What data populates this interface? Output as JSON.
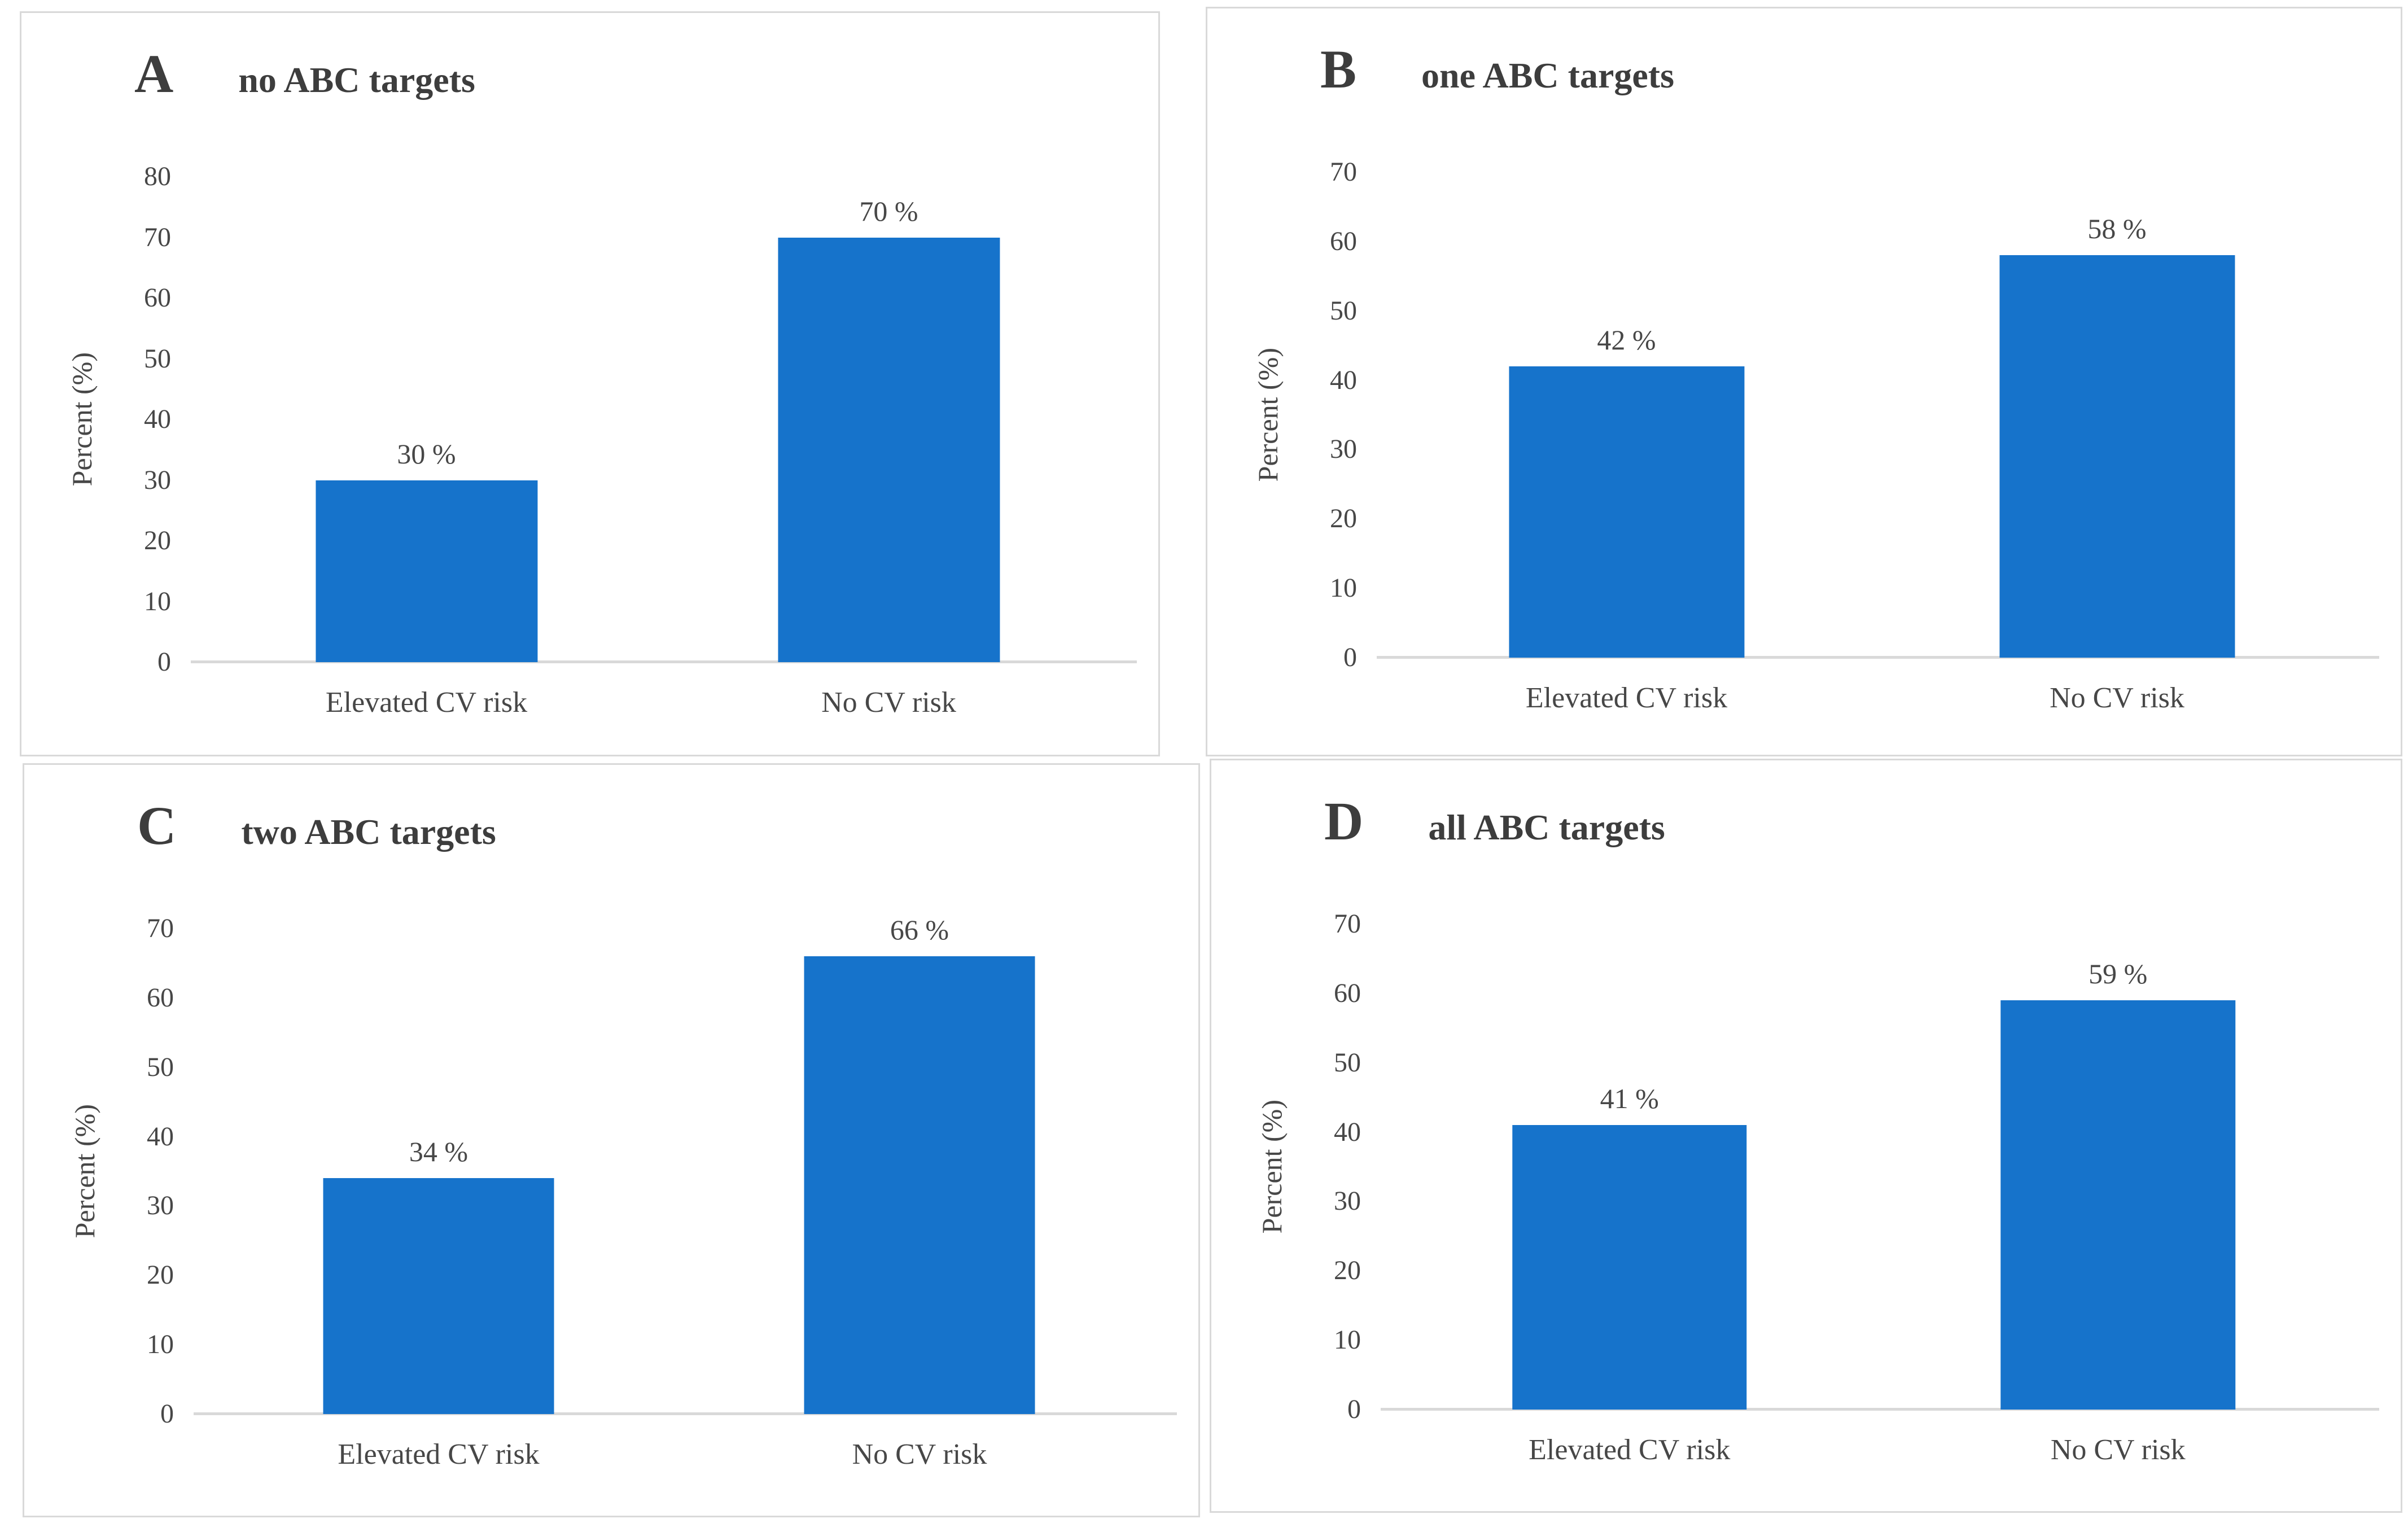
{
  "styles": {
    "bar_color": "#1673CB",
    "axis_color": "#D9D9D9",
    "border_color": "#D9D9D9",
    "text_color": "#474747",
    "title_color": "#3D3D3D"
  },
  "chart_data": [
    {
      "type": "bar",
      "panel_letter": "A",
      "title": "no ABC targets",
      "ylabel": "Percent (%)",
      "ylim": [
        0,
        80
      ],
      "ytick_step": 10,
      "grid": false,
      "legend": false,
      "categories": [
        "Elevated CV risk",
        "No CV risk"
      ],
      "values": [
        30,
        70
      ],
      "value_labels": [
        "30 %",
        "70 %"
      ]
    },
    {
      "type": "bar",
      "panel_letter": "B",
      "title": "one ABC targets",
      "ylabel": "Percent (%)",
      "ylim": [
        0,
        70
      ],
      "ytick_step": 10,
      "grid": false,
      "legend": false,
      "categories": [
        "Elevated CV risk",
        "No CV risk"
      ],
      "values": [
        42,
        58
      ],
      "value_labels": [
        "42 %",
        "58 %"
      ]
    },
    {
      "type": "bar",
      "panel_letter": "C",
      "title": "two ABC targets",
      "ylabel": "Percent (%)",
      "ylim": [
        0,
        70
      ],
      "ytick_step": 10,
      "grid": false,
      "legend": false,
      "categories": [
        "Elevated CV risk",
        "No CV risk"
      ],
      "values": [
        34,
        66
      ],
      "value_labels": [
        "34 %",
        "66 %"
      ]
    },
    {
      "type": "bar",
      "panel_letter": "D",
      "title": "all ABC targets",
      "ylabel": "Percent (%)",
      "ylim": [
        0,
        70
      ],
      "ytick_step": 10,
      "grid": false,
      "legend": false,
      "categories": [
        "Elevated CV risk",
        "No CV risk"
      ],
      "values": [
        41,
        59
      ],
      "value_labels": [
        "41 %",
        "59 %"
      ]
    }
  ]
}
